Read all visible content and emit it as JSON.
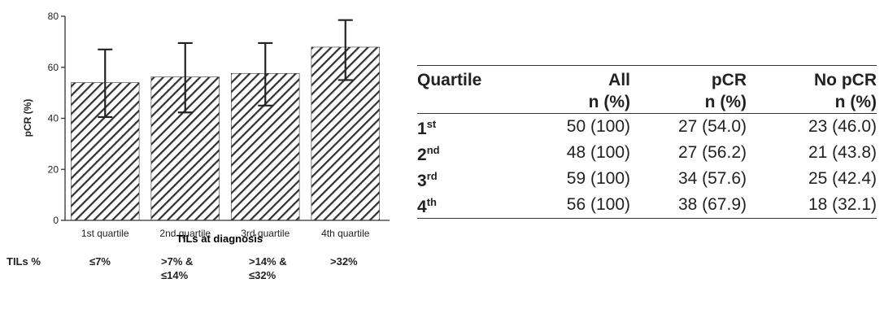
{
  "chart_data": {
    "type": "bar",
    "categories": [
      "1st quartile",
      "2nd quartile",
      "3rd quartile",
      "4th quartile"
    ],
    "values": [
      54.0,
      56.2,
      57.6,
      67.9
    ],
    "error_low": [
      40.5,
      42.3,
      45.0,
      55.0
    ],
    "error_high": [
      67.0,
      69.5,
      69.5,
      78.5
    ],
    "xlabel": "TILs at diagnosis",
    "ylabel": "pCR (%)",
    "ylim": [
      0,
      80
    ],
    "yticks": [
      0,
      20,
      40,
      60,
      80
    ],
    "pattern": "diagonal-hatch",
    "bar_color": "#333333"
  },
  "tils": {
    "label": "TILs %",
    "ranges": [
      {
        "line1": "≤7%",
        "line2": ""
      },
      {
        "line1": ">7% &",
        "line2": "≤14%"
      },
      {
        "line1": ">14% &",
        "line2": "≤32%"
      },
      {
        "line1": ">32%",
        "line2": ""
      }
    ]
  },
  "table": {
    "headers": [
      {
        "line1": "Quartile",
        "line2": ""
      },
      {
        "line1": "All",
        "line2": "n (%)"
      },
      {
        "line1": "pCR",
        "line2": "n (%)"
      },
      {
        "line1": "No pCR",
        "line2": "n (%)"
      }
    ],
    "rows": [
      {
        "num": "1",
        "sup": "st",
        "all": "50 (100)",
        "pcr": "27 (54.0)",
        "nopcr": "23 (46.0)"
      },
      {
        "num": "2",
        "sup": "nd",
        "all": "48 (100)",
        "pcr": "27 (56.2)",
        "nopcr": "21 (43.8)"
      },
      {
        "num": "3",
        "sup": "rd",
        "all": "59 (100)",
        "pcr": "34 (57.6)",
        "nopcr": "25 (42.4)"
      },
      {
        "num": "4",
        "sup": "th",
        "all": "56 (100)",
        "pcr": "38 (67.9)",
        "nopcr": "18 (32.1)"
      }
    ]
  }
}
